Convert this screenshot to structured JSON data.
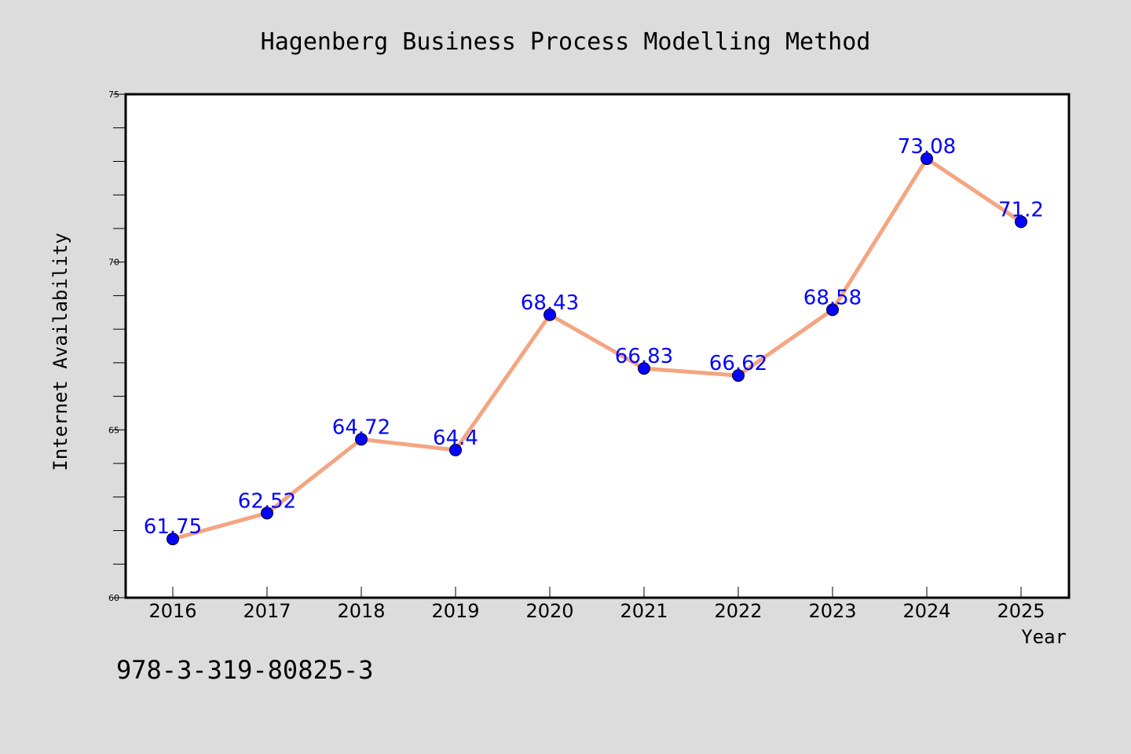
{
  "chart_data": {
    "type": "line",
    "title": "Hagenberg Business Process Modelling Method",
    "xlabel": "Year",
    "ylabel": "Internet Availability",
    "x": [
      "2016",
      "2017",
      "2018",
      "2019",
      "2020",
      "2021",
      "2022",
      "2023",
      "2024",
      "2025"
    ],
    "series": [
      {
        "values": [
          61.75,
          62.52,
          64.72,
          64.4,
          68.43,
          66.83,
          66.62,
          68.58,
          73.08,
          71.2
        ],
        "data_labels": [
          "61.75",
          "62.52",
          "64.72",
          "64.4",
          "68.43",
          "66.83",
          "66.62",
          "68.58",
          "73.08",
          "71.2"
        ]
      }
    ],
    "ylim": [
      60,
      75
    ],
    "y_ticks": [
      60,
      65,
      70,
      75
    ],
    "grid": false,
    "colors": {
      "line": "#f4a582",
      "marker": "#0000ff",
      "label": "#0000ff",
      "background": "#dcdcdc",
      "plot_background": "#ffffff"
    }
  },
  "footnote": "978-3-319-80825-3"
}
